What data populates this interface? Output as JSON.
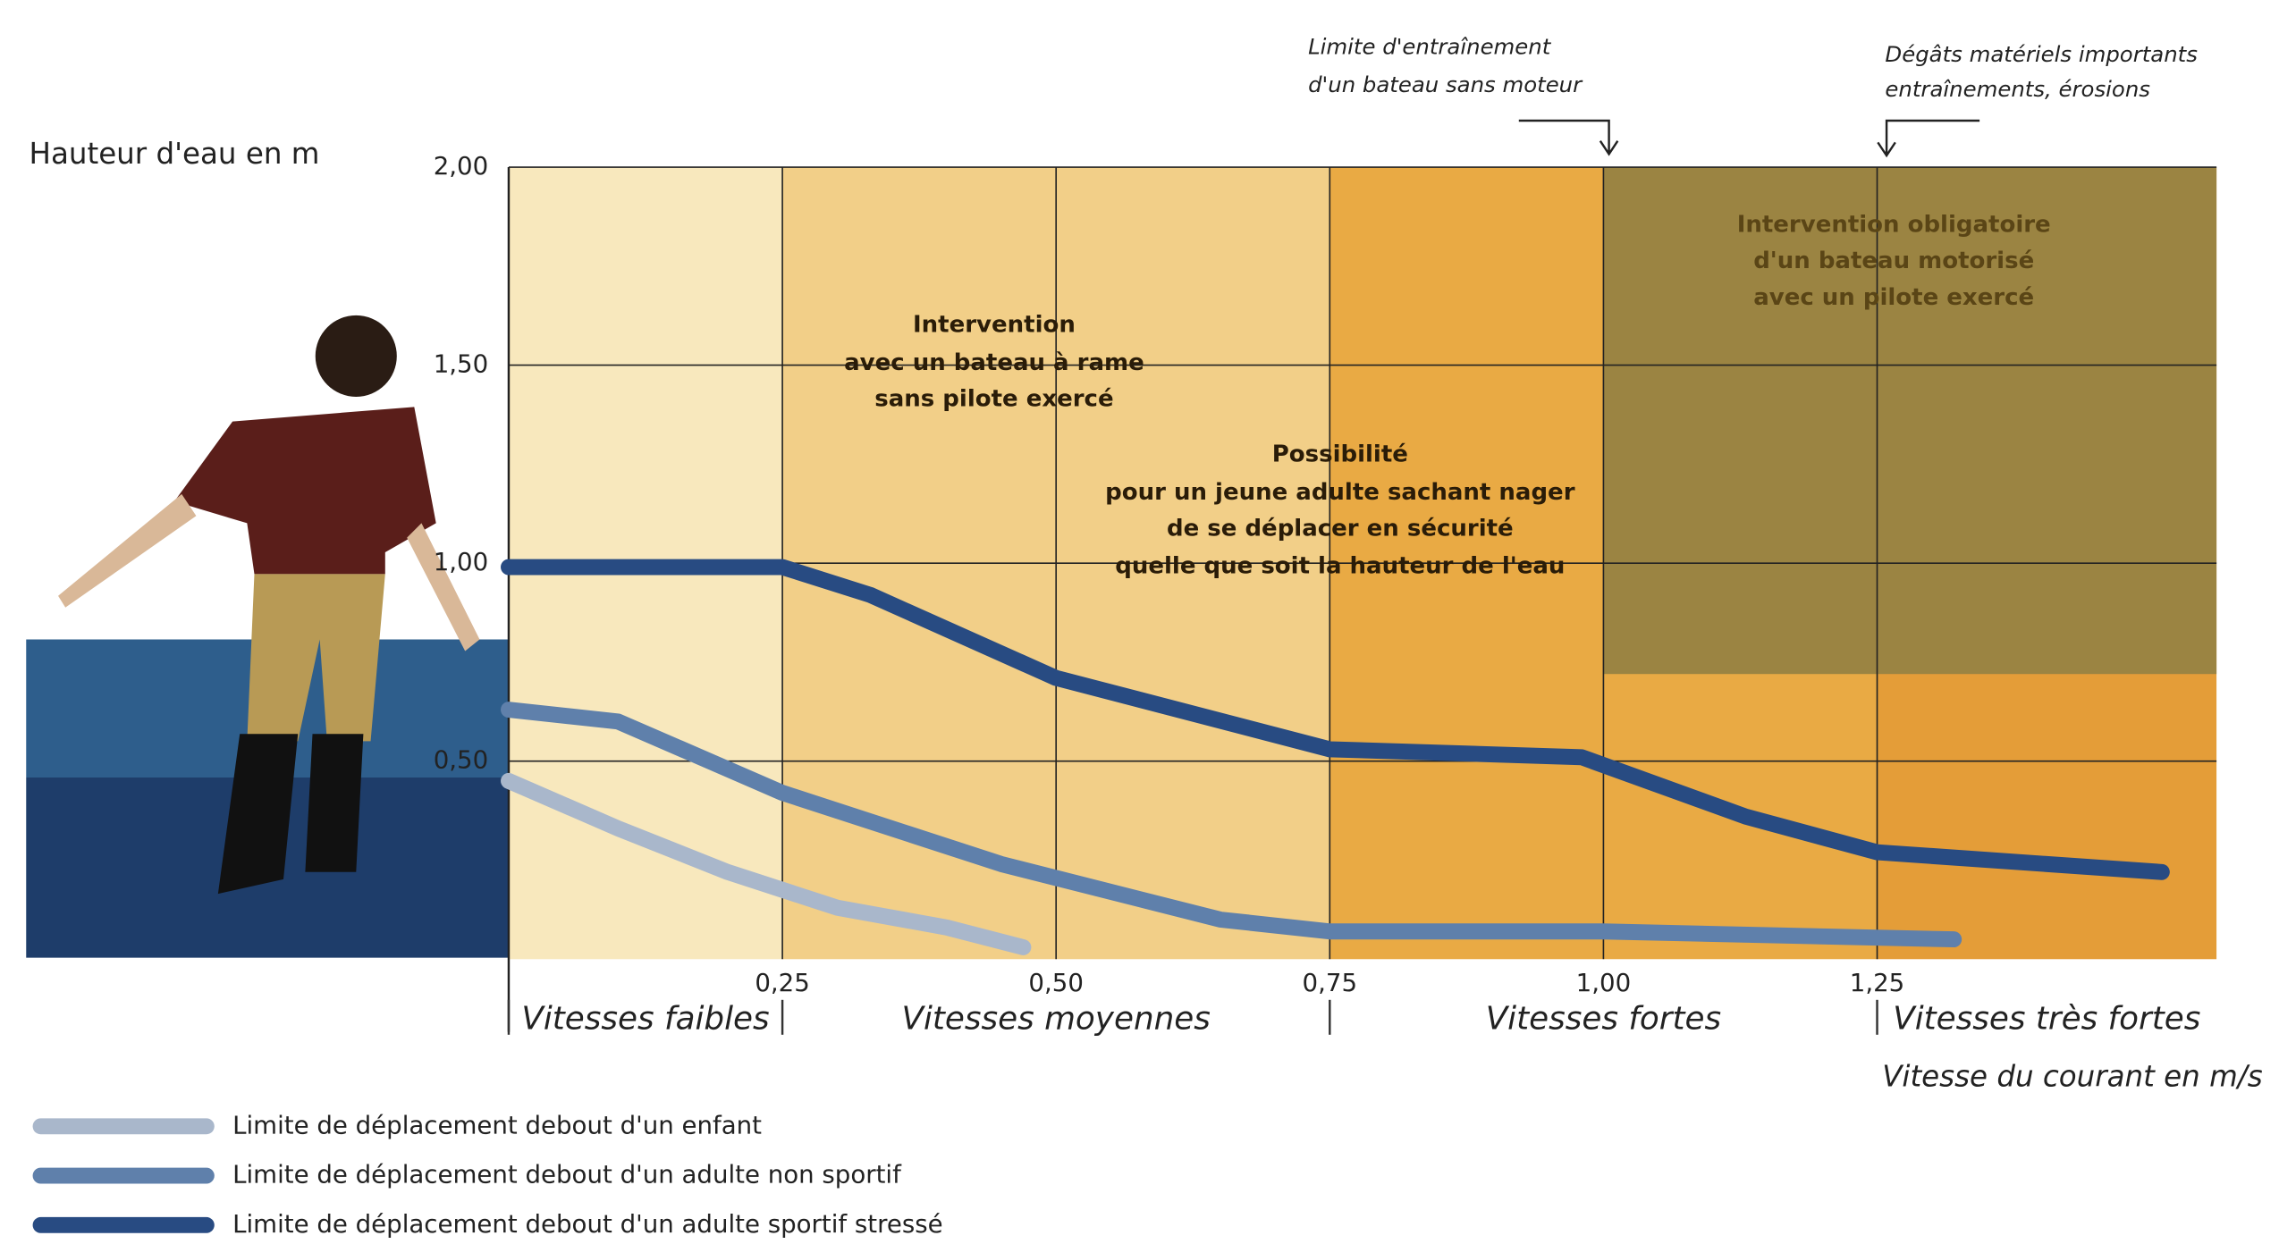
{
  "chart_data": {
    "type": "line",
    "y_label": "Hauteur d'eau en m",
    "x_label": "Vitesse du courant en m/s",
    "xlim": [
      0,
      1.56
    ],
    "ylim": [
      0,
      2
    ],
    "xticks": [
      {
        "value": 0.25,
        "label": "0,25"
      },
      {
        "value": 0.5,
        "label": "0,50"
      },
      {
        "value": 0.75,
        "label": "0,75"
      },
      {
        "value": 1,
        "label": "1,00"
      },
      {
        "value": 1.25,
        "label": "1,25"
      }
    ],
    "yticks": [
      {
        "value": 0.5,
        "label": "0,50"
      },
      {
        "value": 1,
        "label": "1,00"
      },
      {
        "value": 1.5,
        "label": "1,50"
      },
      {
        "value": 2,
        "label": "2,00"
      }
    ],
    "grid": true,
    "zones": [
      {
        "label": "Vitesses faibles",
        "from": 0,
        "to": 0.25,
        "color": "#f8e8bd"
      },
      {
        "label": "Vitesses moyennes",
        "from": 0.25,
        "to": 0.75,
        "color": "#f2cf88"
      },
      {
        "label": "Vitesses fortes",
        "from": 0.75,
        "to": 1.25,
        "color": "#e9aa44"
      },
      {
        "label": "Vitesses très fortes",
        "from": 1.25,
        "to": 1.56,
        "color": "#e49d38"
      }
    ],
    "shaded_region": {
      "from_x": 1,
      "from_y": 0.72,
      "color": "#9b8442"
    },
    "series": [
      {
        "name": "Limite de déplacement debout d'un enfant",
        "color": "#a9b7cb",
        "x": [
          0,
          0.1,
          0.2,
          0.3,
          0.4,
          0.47
        ],
        "values": [
          0.45,
          0.33,
          0.22,
          0.13,
          0.08,
          0.03
        ]
      },
      {
        "name": "Limite de déplacement debout d'un adulte non sportif",
        "color": "#5f80ab",
        "x": [
          0,
          0.1,
          0.25,
          0.45,
          0.65,
          0.75,
          1,
          1.32
        ],
        "values": [
          0.63,
          0.6,
          0.42,
          0.24,
          0.1,
          0.07,
          0.07,
          0.05
        ]
      },
      {
        "name": "Limite de déplacement debout d'un adulte sportif stressé",
        "color": "#284b82",
        "x": [
          0,
          0.25,
          0.33,
          0.5,
          0.75,
          0.98,
          1.13,
          1.25,
          1.51
        ],
        "values": [
          0.99,
          0.99,
          0.92,
          0.71,
          0.53,
          0.51,
          0.36,
          0.27,
          0.22
        ]
      }
    ],
    "annotations": [
      {
        "lines": [
          "Limite d'entraînement",
          "d'un bateau sans moteur"
        ]
      },
      {
        "lines": [
          "Dégâts matériels importants",
          "entraînements, érosions"
        ]
      },
      {
        "lines": [
          "Intervention",
          "avec un bateau à rame",
          "sans pilote exercé"
        ]
      },
      {
        "lines": [
          "Possibilité",
          "pour un jeune adulte sachant nager",
          "de se déplacer en sécurité",
          "quelle que soit la hauteur de l'eau"
        ]
      },
      {
        "lines": [
          "Intervention obligatoire",
          "d'un bateau motorisé",
          "avec un pilote exercé"
        ]
      }
    ]
  }
}
